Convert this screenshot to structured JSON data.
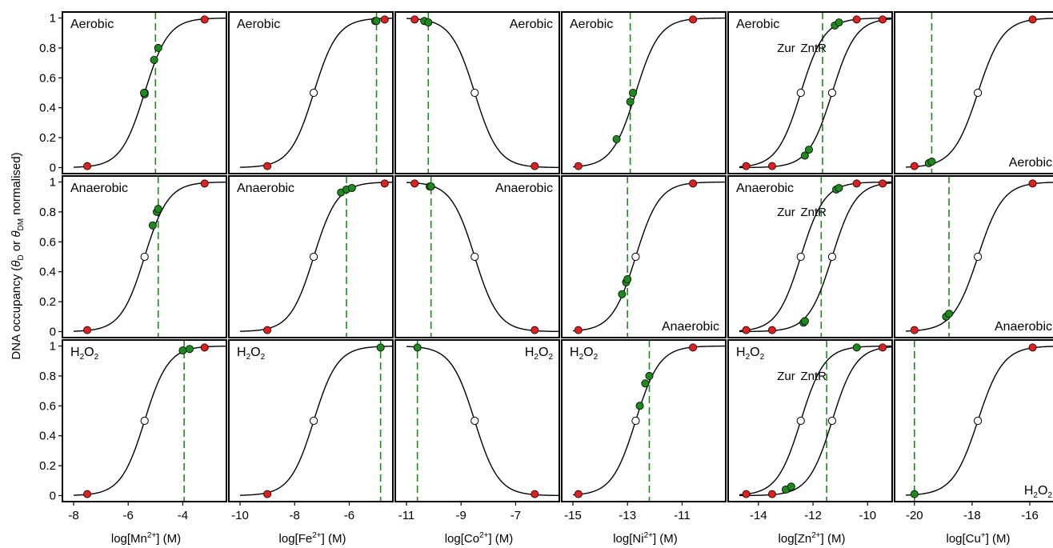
{
  "figure": {
    "ylabel_prefix": "DNA occupancy (",
    "ylabel_theta1": "θ",
    "ylabel_sub1": "D",
    "ylabel_mid": " or ",
    "ylabel_theta2": "θ",
    "ylabel_sub2": "DM",
    "ylabel_suffix": " normalised)"
  },
  "colors": {
    "frame": "#000000",
    "curve": "#000000",
    "green_point": "#1e8a1e",
    "green_line": "#1e8a1e",
    "red_point": "#e02020",
    "open_point": "#ffffff"
  },
  "columns": [
    {
      "metal": "Mn",
      "xlabel_pre": "log[Mn",
      "xlabel_sup": "2+",
      "xlabel_post": "] (M)",
      "xlim": [
        -8,
        -2.4
      ],
      "xticks": [
        -8,
        -6,
        -4
      ],
      "xticklabels": [
        "-8",
        "-6",
        "-4"
      ],
      "curves": [
        {
          "mid": -5.4,
          "slope": 1,
          "label": ""
        }
      ]
    },
    {
      "metal": "Fe",
      "xlabel_pre": "log[Fe",
      "xlabel_sup": "2+",
      "xlabel_post": "] (M)",
      "xlim": [
        -10,
        -4.4
      ],
      "xticks": [
        -10,
        -8,
        -6
      ],
      "xticklabels": [
        "-10",
        "-8",
        "-6"
      ],
      "curves": [
        {
          "mid": -7.3,
          "slope": 1,
          "label": ""
        }
      ]
    },
    {
      "metal": "Co",
      "xlabel_pre": "log[Co",
      "xlabel_sup": "2+",
      "xlabel_post": "] (M)",
      "xlim": [
        -11,
        -5.4
      ],
      "xticks": [
        -11,
        -9,
        -7
      ],
      "xticklabels": [
        "-11",
        "-9",
        "-7"
      ],
      "curves": [
        {
          "mid": -8.5,
          "slope": -1,
          "label": ""
        }
      ]
    },
    {
      "metal": "Ni",
      "xlabel_pre": "log[Ni",
      "xlabel_sup": "2+",
      "xlabel_post": "] (M)",
      "xlim": [
        -15,
        -9.4
      ],
      "xticks": [
        -15,
        -13,
        -11
      ],
      "xticklabels": [
        "-15",
        "-13",
        "-11"
      ],
      "curves": [
        {
          "mid": -12.7,
          "slope": 1,
          "label": ""
        }
      ]
    },
    {
      "metal": "Zn",
      "xlabel_pre": "log[Zn",
      "xlabel_sup": "2+",
      "xlabel_post": "] (M)",
      "xlim": [
        -14.7,
        -9.1
      ],
      "xticks": [
        -14,
        -12,
        -10
      ],
      "xticklabels": [
        "-14",
        "-12",
        "-10"
      ],
      "curves": [
        {
          "mid": -12.45,
          "slope": 1,
          "label": "Zur"
        },
        {
          "mid": -11.3,
          "slope": 1,
          "label": "ZntR"
        }
      ]
    },
    {
      "metal": "Cu",
      "xlabel_pre": "log[Cu",
      "xlabel_sup": "+",
      "xlabel_post": "] (M)",
      "xlim": [
        -20.3,
        -15
      ],
      "xticks": [
        -20,
        -18,
        -16
      ],
      "xticklabels": [
        "-20",
        "-18",
        "-16"
      ],
      "curves": [
        {
          "mid": -17.8,
          "slope": 1,
          "label": ""
        }
      ]
    }
  ],
  "rows": [
    {
      "condition": "Aerobic",
      "ylim": [
        -0.04,
        1.04
      ],
      "yticks": [
        0,
        0.2,
        0.4,
        0.6,
        0.8,
        1
      ],
      "yticklabels": [
        "0",
        "0.2",
        "0.4",
        "0.6",
        "0.8",
        "1"
      ]
    },
    {
      "condition": "Anaerobic",
      "ylim": [
        -0.04,
        1.04
      ],
      "yticks": [
        0,
        0.2,
        0.4,
        0.6,
        0.8,
        1
      ],
      "yticklabels": [
        "0",
        "0.2",
        "0.4",
        "0.6",
        "0.8",
        "1"
      ]
    },
    {
      "condition": "H2O2",
      "ylim": [
        -0.04,
        1.04
      ],
      "yticks": [
        0,
        0.2,
        0.4,
        0.6,
        0.8,
        1
      ],
      "yticklabels": [
        "0",
        "0.2",
        "0.4",
        "0.6",
        "0.8",
        "1"
      ]
    }
  ],
  "chart_data": [
    {
      "type": "line",
      "row": 0,
      "col": 0,
      "title": "Aerobic",
      "title_pos": "top-left",
      "vline": -5.0,
      "red": [
        [
          -7.5,
          0.01
        ],
        [
          -3.2,
          0.99
        ]
      ],
      "open": [
        [
          -5.4,
          0.5
        ]
      ],
      "green": [
        [
          -5.4,
          0.49
        ],
        [
          -5.42,
          0.5
        ],
        [
          -5.05,
          0.72
        ],
        [
          -4.9,
          0.8
        ]
      ]
    },
    {
      "type": "line",
      "row": 0,
      "col": 1,
      "title": "Aerobic",
      "title_pos": "top-left",
      "vline": -5.0,
      "red": [
        [
          -9.0,
          0.01
        ],
        [
          -4.7,
          0.99
        ]
      ],
      "open": [
        [
          -7.3,
          0.5
        ]
      ],
      "green": [
        [
          -5.05,
          0.98
        ],
        [
          -5.0,
          0.98
        ]
      ]
    },
    {
      "type": "line",
      "row": 0,
      "col": 2,
      "title": "Aerobic",
      "title_pos": "top-right",
      "vline": -10.2,
      "red": [
        [
          -10.7,
          0.99
        ],
        [
          -6.3,
          0.01
        ]
      ],
      "open": [
        [
          -8.5,
          0.5
        ]
      ],
      "green": [
        [
          -10.35,
          0.98
        ],
        [
          -10.2,
          0.97
        ]
      ]
    },
    {
      "type": "line",
      "row": 0,
      "col": 3,
      "title": "Aerobic",
      "title_pos": "top-left",
      "vline": -12.9,
      "red": [
        [
          -14.8,
          0.01
        ],
        [
          -10.6,
          0.99
        ]
      ],
      "open": [],
      "green": [
        [
          -13.4,
          0.19
        ],
        [
          -12.9,
          0.44
        ],
        [
          -12.8,
          0.5
        ]
      ]
    },
    {
      "type": "line",
      "row": 0,
      "col": 4,
      "title": "Aerobic",
      "title_pos": "top-left",
      "vline": -11.65,
      "red": [
        [
          -14.45,
          0.01
        ],
        [
          -13.5,
          0.01
        ],
        [
          -10.4,
          0.99
        ],
        [
          -9.45,
          0.99
        ]
      ],
      "open": [
        [
          -12.45,
          0.5
        ],
        [
          -11.3,
          0.5
        ]
      ],
      "green": [
        [
          -11.2,
          0.95
        ],
        [
          -11.05,
          0.97
        ],
        [
          -12.3,
          0.08
        ],
        [
          -12.15,
          0.12
        ]
      ]
    },
    {
      "type": "line",
      "row": 0,
      "col": 5,
      "title": "Aerobic",
      "title_pos": "bottom-right",
      "vline": -19.4,
      "red": [
        [
          -20.0,
          0.01
        ],
        [
          -15.9,
          0.99
        ]
      ],
      "open": [
        [
          -17.8,
          0.5
        ]
      ],
      "green": [
        [
          -19.5,
          0.03
        ],
        [
          -19.4,
          0.04
        ]
      ]
    },
    {
      "type": "line",
      "row": 1,
      "col": 0,
      "title": "Anaerobic",
      "title_pos": "top-left",
      "vline": -4.9,
      "red": [
        [
          -7.5,
          0.01
        ],
        [
          -3.2,
          0.99
        ]
      ],
      "open": [
        [
          -5.4,
          0.5
        ]
      ],
      "green": [
        [
          -5.1,
          0.71
        ],
        [
          -4.95,
          0.8
        ],
        [
          -4.9,
          0.82
        ]
      ]
    },
    {
      "type": "line",
      "row": 1,
      "col": 1,
      "title": "Anaerobic",
      "title_pos": "top-left",
      "vline": -6.1,
      "red": [
        [
          -9.0,
          0.01
        ],
        [
          -4.7,
          0.99
        ]
      ],
      "open": [
        [
          -7.3,
          0.5
        ]
      ],
      "green": [
        [
          -6.3,
          0.93
        ],
        [
          -6.1,
          0.95
        ],
        [
          -5.9,
          0.96
        ]
      ]
    },
    {
      "type": "line",
      "row": 1,
      "col": 2,
      "title": "Anaerobic",
      "title_pos": "top-right",
      "vline": -10.1,
      "red": [
        [
          -10.7,
          0.99
        ],
        [
          -6.3,
          0.01
        ]
      ],
      "open": [
        [
          -8.5,
          0.5
        ]
      ],
      "green": [
        [
          -10.15,
          0.97
        ],
        [
          -10.1,
          0.97
        ]
      ]
    },
    {
      "type": "line",
      "row": 1,
      "col": 3,
      "title": "Anaerobic",
      "title_pos": "bottom-right",
      "vline": -13.0,
      "red": [
        [
          -14.8,
          0.01
        ],
        [
          -10.6,
          0.99
        ]
      ],
      "open": [
        [
          -12.7,
          0.5
        ]
      ],
      "green": [
        [
          -13.2,
          0.25
        ],
        [
          -13.05,
          0.33
        ],
        [
          -13.0,
          0.35
        ]
      ]
    },
    {
      "type": "line",
      "row": 1,
      "col": 4,
      "title": "Anaerobic",
      "title_pos": "top-left",
      "vline": -11.7,
      "red": [
        [
          -14.45,
          0.01
        ],
        [
          -13.5,
          0.01
        ],
        [
          -10.4,
          0.99
        ],
        [
          -9.45,
          0.99
        ]
      ],
      "open": [
        [
          -12.45,
          0.5
        ],
        [
          -11.3,
          0.5
        ]
      ],
      "green": [
        [
          -11.15,
          0.95
        ],
        [
          -11.05,
          0.96
        ],
        [
          -12.35,
          0.06
        ],
        [
          -12.3,
          0.07
        ]
      ]
    },
    {
      "type": "line",
      "row": 1,
      "col": 5,
      "title": "Anaerobic",
      "title_pos": "bottom-right",
      "vline": -18.8,
      "red": [
        [
          -20.0,
          0.01
        ],
        [
          -15.9,
          0.99
        ]
      ],
      "open": [
        [
          -17.8,
          0.5
        ]
      ],
      "green": [
        [
          -18.9,
          0.1
        ],
        [
          -18.8,
          0.12
        ]
      ]
    },
    {
      "type": "line",
      "row": 2,
      "col": 0,
      "title": "H2O2",
      "title_pos": "top-left",
      "vline": -3.95,
      "red": [
        [
          -7.5,
          0.01
        ],
        [
          -3.2,
          0.99
        ]
      ],
      "open": [
        [
          -5.4,
          0.5
        ]
      ],
      "green": [
        [
          -4.0,
          0.97
        ],
        [
          -3.75,
          0.98
        ]
      ]
    },
    {
      "type": "line",
      "row": 2,
      "col": 1,
      "title": "H2O2",
      "title_pos": "top-left",
      "vline": -4.85,
      "red": [
        [
          -9.0,
          0.01
        ]
      ],
      "open": [
        [
          -7.3,
          0.5
        ]
      ],
      "green": [
        [
          -4.85,
          0.99
        ]
      ]
    },
    {
      "type": "line",
      "row": 2,
      "col": 2,
      "title": "H2O2",
      "title_pos": "top-right",
      "vline": -10.6,
      "red": [
        [
          -6.3,
          0.01
        ]
      ],
      "open": [
        [
          -8.5,
          0.5
        ]
      ],
      "green": [
        [
          -10.6,
          0.99
        ]
      ]
    },
    {
      "type": "line",
      "row": 2,
      "col": 3,
      "title": "H2O2",
      "title_pos": "top-left",
      "vline": -12.2,
      "red": [
        [
          -14.8,
          0.01
        ],
        [
          -10.6,
          0.99
        ]
      ],
      "open": [
        [
          -12.7,
          0.5
        ]
      ],
      "green": [
        [
          -12.55,
          0.6
        ],
        [
          -12.35,
          0.75
        ],
        [
          -12.2,
          0.8
        ]
      ]
    },
    {
      "type": "line",
      "row": 2,
      "col": 4,
      "title": "H2O2",
      "title_pos": "top-left",
      "vline": -11.5,
      "red": [
        [
          -14.45,
          0.01
        ],
        [
          -13.5,
          0.01
        ],
        [
          -9.45,
          0.99
        ]
      ],
      "open": [
        [
          -12.45,
          0.5
        ],
        [
          -11.3,
          0.5
        ]
      ],
      "green": [
        [
          -10.4,
          0.99
        ],
        [
          -13.0,
          0.04
        ],
        [
          -12.8,
          0.06
        ]
      ]
    },
    {
      "type": "line",
      "row": 2,
      "col": 5,
      "title": "H2O2",
      "title_pos": "bottom-right",
      "vline": -20.0,
      "red": [
        [
          -15.9,
          0.99
        ]
      ],
      "open": [
        [
          -17.8,
          0.5
        ]
      ],
      "green": [
        [
          -20.0,
          0.01
        ]
      ]
    }
  ]
}
